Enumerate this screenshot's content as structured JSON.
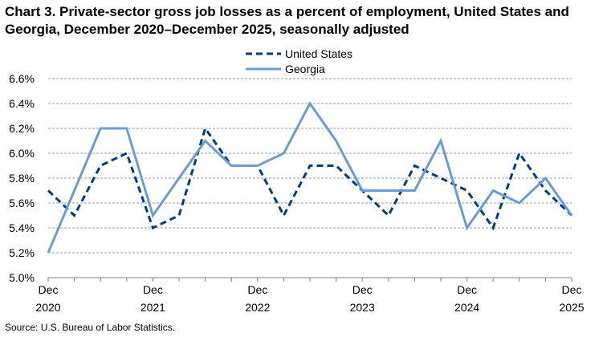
{
  "title": "Chart 3. Private-sector gross job losses as a percent of employment, United States and Georgia, December 2020–December 2025, seasonally adjusted",
  "source": "Source: U.S. Bureau of Labor Statistics.",
  "chart_data": {
    "type": "line",
    "title": "Chart 3. Private-sector gross job losses as a percent of employment, United States and Georgia, December 2020–December 2025, seasonally adjusted",
    "xlabel": "",
    "ylabel": "",
    "x": [
      "Dec 2020",
      "Mar 2021",
      "Jun 2021",
      "Sep 2021",
      "Dec 2021",
      "Mar 2022",
      "Jun 2022",
      "Sep 2022",
      "Dec 2022",
      "Mar 2023",
      "Jun 2023",
      "Sep 2023",
      "Dec 2023",
      "Mar 2024",
      "Jun 2024",
      "Sep 2024",
      "Dec 2024",
      "Mar 2025",
      "Jun 2025",
      "Sep 2025",
      "Dec 2025"
    ],
    "x_tick_labels": [
      {
        "index": 0,
        "line1": "Dec",
        "line2": "2020"
      },
      {
        "index": 4,
        "line1": "Dec",
        "line2": "2021"
      },
      {
        "index": 8,
        "line1": "Dec",
        "line2": "2022"
      },
      {
        "index": 12,
        "line1": "Dec",
        "line2": "2023"
      },
      {
        "index": 16,
        "line1": "Dec",
        "line2": "2024"
      },
      {
        "index": 20,
        "line1": "Dec",
        "line2": "2025"
      }
    ],
    "y_tick_labels": [
      "5.0%",
      "5.2%",
      "5.4%",
      "5.6%",
      "5.8%",
      "6.0%",
      "6.2%",
      "6.4%",
      "6.6%"
    ],
    "y_ticks": [
      5.0,
      5.2,
      5.4,
      5.6,
      5.8,
      6.0,
      6.2,
      6.4,
      6.6
    ],
    "ylim": [
      5.0,
      6.6
    ],
    "grid": "horizontal dashed",
    "legend_position": "top-center",
    "series": [
      {
        "name": "United States",
        "color": "#003b8a",
        "style": "dashed",
        "values": [
          5.7,
          5.5,
          5.9,
          6.0,
          5.4,
          5.5,
          6.2,
          5.9,
          5.9,
          5.5,
          5.9,
          5.9,
          5.7,
          5.5,
          5.9,
          5.8,
          5.7,
          5.4,
          6.0,
          5.7,
          5.5
        ]
      },
      {
        "name": "Georgia",
        "color": "#6b9bd6",
        "style": "solid",
        "values": [
          5.2,
          5.7,
          6.2,
          6.2,
          5.5,
          5.8,
          6.1,
          5.9,
          5.9,
          6.0,
          6.4,
          6.1,
          5.7,
          5.7,
          5.7,
          6.1,
          5.4,
          5.7,
          5.6,
          5.8,
          5.5
        ]
      }
    ]
  }
}
